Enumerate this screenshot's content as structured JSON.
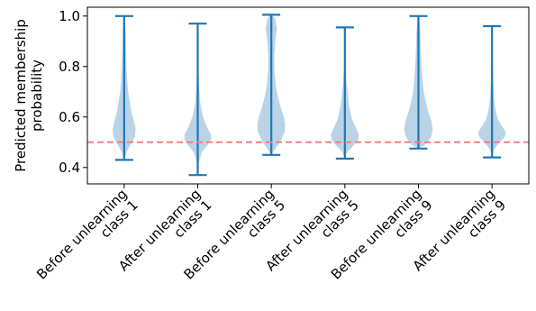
{
  "chart_data": {
    "type": "violin",
    "title": "",
    "xlabel": "",
    "ylabel_lines": [
      "Predicted membership",
      "probability"
    ],
    "categories": [
      [
        "Before unlearning",
        "class 1"
      ],
      [
        "After unlearning",
        "class 1"
      ],
      [
        "Before unlearning",
        "class 5"
      ],
      [
        "After unlearning",
        "class 5"
      ],
      [
        "Before unlearning",
        "class 9"
      ],
      [
        "After unlearning",
        "class 9"
      ]
    ],
    "ylim": [
      0.335,
      1.035
    ],
    "yticks": [
      0.4,
      0.6,
      0.8,
      1.0
    ],
    "ytick_labels": [
      "0.4",
      "0.6",
      "0.8",
      "1.0"
    ],
    "reference_line": {
      "value": 0.5,
      "style": "dashed",
      "color": "#f08080"
    },
    "series": [
      {
        "min": 0.43,
        "max": 1.0,
        "profile": [
          [
            0.43,
            0.002
          ],
          [
            0.46,
            0.07
          ],
          [
            0.49,
            0.19
          ],
          [
            0.52,
            0.32
          ],
          [
            0.55,
            0.35
          ],
          [
            0.58,
            0.3
          ],
          [
            0.62,
            0.22
          ],
          [
            0.66,
            0.17
          ],
          [
            0.7,
            0.12
          ],
          [
            0.75,
            0.09
          ],
          [
            0.8,
            0.07
          ],
          [
            0.85,
            0.06
          ],
          [
            0.9,
            0.05
          ],
          [
            0.95,
            0.045
          ],
          [
            1.0,
            0.02
          ]
        ]
      },
      {
        "min": 0.37,
        "max": 0.97,
        "profile": [
          [
            0.37,
            0.002
          ],
          [
            0.42,
            0.03
          ],
          [
            0.46,
            0.12
          ],
          [
            0.49,
            0.3
          ],
          [
            0.51,
            0.4
          ],
          [
            0.53,
            0.4
          ],
          [
            0.56,
            0.28
          ],
          [
            0.6,
            0.16
          ],
          [
            0.65,
            0.08
          ],
          [
            0.7,
            0.05
          ],
          [
            0.8,
            0.02
          ],
          [
            0.9,
            0.012
          ],
          [
            0.97,
            0.003
          ]
        ]
      },
      {
        "min": 0.45,
        "max": 1.005,
        "profile": [
          [
            0.45,
            0.002
          ],
          [
            0.48,
            0.15
          ],
          [
            0.51,
            0.3
          ],
          [
            0.54,
            0.4
          ],
          [
            0.57,
            0.42
          ],
          [
            0.6,
            0.38
          ],
          [
            0.64,
            0.28
          ],
          [
            0.68,
            0.2
          ],
          [
            0.72,
            0.14
          ],
          [
            0.78,
            0.1
          ],
          [
            0.84,
            0.09
          ],
          [
            0.9,
            0.12
          ],
          [
            0.95,
            0.17
          ],
          [
            0.99,
            0.12
          ],
          [
            1.005,
            0.02
          ]
        ]
      },
      {
        "min": 0.435,
        "max": 0.955,
        "profile": [
          [
            0.435,
            0.002
          ],
          [
            0.46,
            0.07
          ],
          [
            0.49,
            0.28
          ],
          [
            0.51,
            0.4
          ],
          [
            0.53,
            0.42
          ],
          [
            0.55,
            0.36
          ],
          [
            0.59,
            0.22
          ],
          [
            0.64,
            0.13
          ],
          [
            0.69,
            0.09
          ],
          [
            0.74,
            0.05
          ],
          [
            0.8,
            0.025
          ],
          [
            0.88,
            0.01
          ],
          [
            0.955,
            0.003
          ]
        ]
      },
      {
        "min": 0.475,
        "max": 1.0,
        "profile": [
          [
            0.475,
            0.002
          ],
          [
            0.49,
            0.2
          ],
          [
            0.52,
            0.38
          ],
          [
            0.55,
            0.43
          ],
          [
            0.58,
            0.4
          ],
          [
            0.62,
            0.3
          ],
          [
            0.66,
            0.22
          ],
          [
            0.7,
            0.16
          ],
          [
            0.76,
            0.12
          ],
          [
            0.82,
            0.09
          ],
          [
            0.88,
            0.07
          ],
          [
            0.94,
            0.06
          ],
          [
            1.0,
            0.02
          ]
        ]
      },
      {
        "min": 0.44,
        "max": 0.96,
        "profile": [
          [
            0.44,
            0.002
          ],
          [
            0.47,
            0.06
          ],
          [
            0.5,
            0.22
          ],
          [
            0.52,
            0.38
          ],
          [
            0.54,
            0.42
          ],
          [
            0.56,
            0.32
          ],
          [
            0.59,
            0.18
          ],
          [
            0.63,
            0.1
          ],
          [
            0.68,
            0.06
          ],
          [
            0.74,
            0.035
          ],
          [
            0.82,
            0.02
          ],
          [
            0.9,
            0.01
          ],
          [
            0.96,
            0.003
          ]
        ]
      }
    ],
    "colors": {
      "body": "#a9c8e0",
      "body_opacity": 0.8,
      "whisker": "#1f77b4"
    },
    "grid": false,
    "legend": "none"
  }
}
